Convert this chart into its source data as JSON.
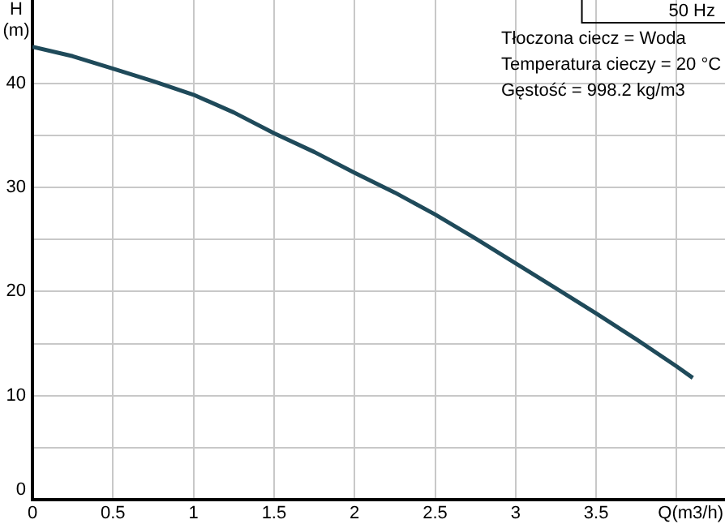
{
  "chart_data": {
    "type": "line",
    "title": "50 Hz",
    "xlabel": "Q(m3/h)",
    "ylabel": "H (m)",
    "annotations": [
      "Tłoczona ciecz = Woda",
      "Temperatura cieczy = 20 °C",
      "Gęstość = 998.2 kg/m3"
    ],
    "x": [
      0,
      0.25,
      0.5,
      0.75,
      1,
      1.25,
      1.5,
      1.75,
      2,
      2.25,
      2.5,
      2.75,
      3,
      3.25,
      3.5,
      3.75,
      4,
      4.1
    ],
    "series": [
      {
        "color": "#1f4a5a",
        "values": [
          43.5,
          42.6,
          41.4,
          40.2,
          38.9,
          37.2,
          35.2,
          33.4,
          31.4,
          29.5,
          27.4,
          25.1,
          22.7,
          20.3,
          17.9,
          15.4,
          12.8,
          11.7
        ]
      }
    ],
    "xlim": [
      0,
      4.3
    ],
    "xticks": [
      0,
      0.5,
      1,
      1.5,
      2,
      2.5,
      3,
      3.5,
      {
        "value": 4,
        "label": null
      }
    ],
    "ylim": [
      0,
      48
    ],
    "yticks": [
      0,
      {
        "value": 5,
        "label": null
      },
      10,
      {
        "value": 15,
        "label": null
      },
      20,
      {
        "value": 25,
        "label": null
      },
      30,
      {
        "value": 35,
        "label": null
      },
      40
    ],
    "grid": true,
    "marker": "none",
    "line_style": "solid",
    "legend": false
  }
}
